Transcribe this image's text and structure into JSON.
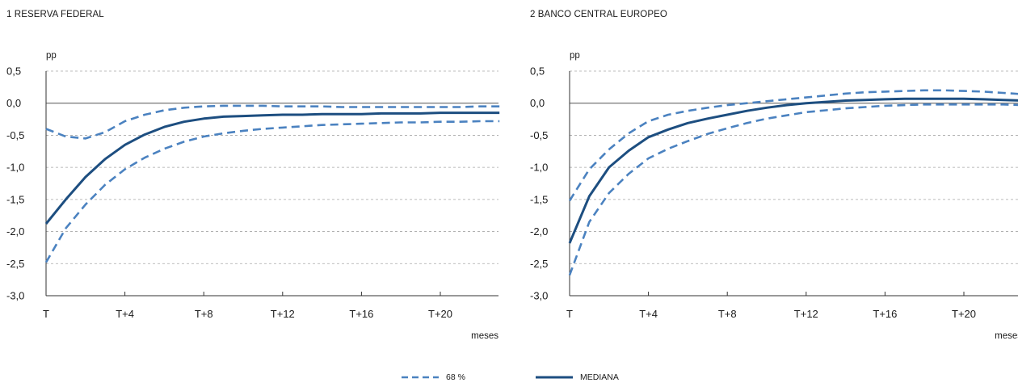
{
  "chart_data": [
    {
      "type": "line",
      "title": "1  RESERVA FEDERAL",
      "ylabel": "pp",
      "xlabel": "meses",
      "ylim": [
        -3.0,
        0.5
      ],
      "yticks": [
        "0,5",
        "0,0",
        "-0,5",
        "-1,0",
        "-1,5",
        "-2,0",
        "-2,5",
        "-3,0"
      ],
      "ytick_values": [
        0.5,
        0.0,
        -0.5,
        -1.0,
        -1.5,
        -2.0,
        -2.5,
        -3.0
      ],
      "xticks": [
        "T",
        "T+4",
        "T+8",
        "T+12",
        "T+16",
        "T+20"
      ],
      "xtick_values": [
        0,
        4,
        8,
        12,
        16,
        20
      ],
      "xlim": [
        0,
        23
      ],
      "grid": true,
      "x": [
        0,
        1,
        2,
        3,
        4,
        5,
        6,
        7,
        8,
        9,
        10,
        11,
        12,
        13,
        14,
        15,
        16,
        17,
        18,
        19,
        20,
        21,
        22,
        23
      ],
      "series": [
        {
          "name": "MEDIANA",
          "style": "solid",
          "values": [
            -1.88,
            -1.5,
            -1.15,
            -0.87,
            -0.65,
            -0.49,
            -0.37,
            -0.29,
            -0.24,
            -0.21,
            -0.2,
            -0.19,
            -0.18,
            -0.18,
            -0.17,
            -0.17,
            -0.17,
            -0.16,
            -0.16,
            -0.16,
            -0.15,
            -0.15,
            -0.15,
            -0.15
          ]
        },
        {
          "name": "68 %",
          "style": "dashed",
          "values": [
            -0.4,
            -0.52,
            -0.55,
            -0.45,
            -0.28,
            -0.18,
            -0.11,
            -0.07,
            -0.05,
            -0.04,
            -0.04,
            -0.04,
            -0.05,
            -0.05,
            -0.05,
            -0.06,
            -0.06,
            -0.06,
            -0.06,
            -0.06,
            -0.06,
            -0.06,
            -0.05,
            -0.05
          ]
        },
        {
          "name": "68 %",
          "style": "dashed",
          "values": [
            -2.48,
            -1.95,
            -1.58,
            -1.27,
            -1.03,
            -0.85,
            -0.71,
            -0.6,
            -0.52,
            -0.47,
            -0.43,
            -0.4,
            -0.38,
            -0.36,
            -0.34,
            -0.33,
            -0.32,
            -0.31,
            -0.3,
            -0.3,
            -0.29,
            -0.29,
            -0.28,
            -0.28
          ]
        }
      ]
    },
    {
      "type": "line",
      "title": "2  BANCO CENTRAL EUROPEO",
      "ylabel": "pp",
      "xlabel": "meses",
      "ylim": [
        -3.0,
        0.5
      ],
      "yticks": [
        "0,5",
        "0,0",
        "-0,5",
        "-1,0",
        "-1,5",
        "-2,0",
        "-2,5",
        "-3,0"
      ],
      "ytick_values": [
        0.5,
        0.0,
        -0.5,
        -1.0,
        -1.5,
        -2.0,
        -2.5,
        -3.0
      ],
      "xticks": [
        "T",
        "T+4",
        "T+8",
        "T+12",
        "T+16",
        "T+20"
      ],
      "xtick_values": [
        0,
        4,
        8,
        12,
        16,
        20
      ],
      "xlim": [
        0,
        23
      ],
      "grid": true,
      "x": [
        0,
        1,
        2,
        3,
        4,
        5,
        6,
        7,
        8,
        9,
        10,
        11,
        12,
        13,
        14,
        15,
        16,
        17,
        18,
        19,
        20,
        21,
        22,
        23
      ],
      "series": [
        {
          "name": "MEDIANA",
          "style": "solid",
          "values": [
            -2.18,
            -1.45,
            -1.0,
            -0.74,
            -0.53,
            -0.41,
            -0.31,
            -0.24,
            -0.18,
            -0.12,
            -0.07,
            -0.03,
            0.0,
            0.02,
            0.04,
            0.05,
            0.06,
            0.07,
            0.07,
            0.07,
            0.07,
            0.06,
            0.05,
            0.04
          ]
        },
        {
          "name": "68 %",
          "style": "dashed",
          "values": [
            -1.52,
            -1.03,
            -0.72,
            -0.47,
            -0.28,
            -0.18,
            -0.12,
            -0.07,
            -0.03,
            0.0,
            0.03,
            0.06,
            0.09,
            0.12,
            0.15,
            0.17,
            0.18,
            0.19,
            0.2,
            0.2,
            0.19,
            0.18,
            0.16,
            0.14
          ]
        },
        {
          "name": "68 %",
          "style": "dashed",
          "values": [
            -2.68,
            -1.85,
            -1.4,
            -1.1,
            -0.86,
            -0.71,
            -0.59,
            -0.48,
            -0.39,
            -0.31,
            -0.24,
            -0.19,
            -0.14,
            -0.11,
            -0.08,
            -0.06,
            -0.04,
            -0.03,
            -0.02,
            -0.02,
            -0.02,
            -0.02,
            -0.02,
            -0.03
          ]
        }
      ]
    }
  ],
  "legend": {
    "dashed_label": "68 %",
    "solid_label": "MEDIANA"
  },
  "colors": {
    "median": "#1d4e80",
    "band": "#4b82c0",
    "grid": "#a6a6a6",
    "zero": "#555555",
    "text": "#1a1a1a"
  }
}
